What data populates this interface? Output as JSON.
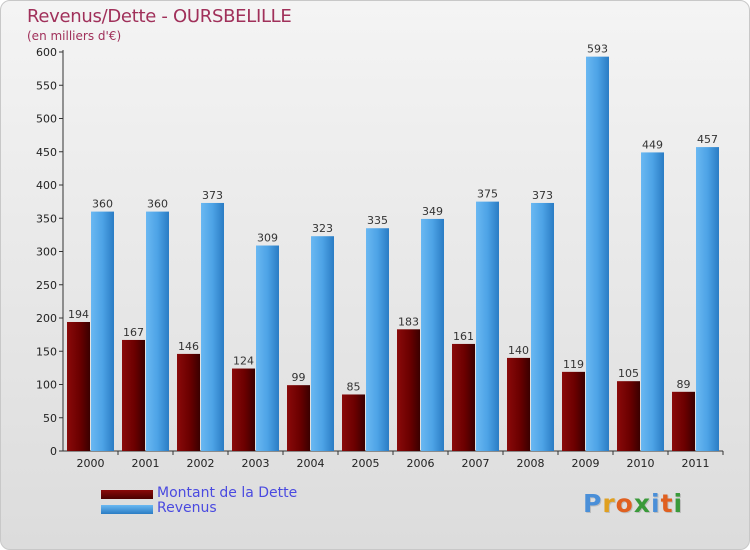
{
  "header": {
    "title": "Revenus/Dette - OURSBELILLE",
    "subtitle": "(en milliers d'€)"
  },
  "colors": {
    "dette": "#6b0000",
    "revenus": "#4da3e6",
    "title": "#a0305a",
    "legend_text": "#4a4ae0"
  },
  "legend": {
    "dette_label": "Montant de la Dette",
    "revenus_label": "Revenus"
  },
  "logo": {
    "letters": [
      "P",
      "r",
      "o",
      "x",
      "i",
      "t",
      "i"
    ],
    "colors": [
      "#4a8fd8",
      "#e0a020",
      "#e06020",
      "#3a9a3a",
      "#4a8fd8",
      "#e06020",
      "#3a9a3a"
    ]
  },
  "chart_data": {
    "type": "bar",
    "categories": [
      "2000",
      "2001",
      "2002",
      "2003",
      "2004",
      "2005",
      "2006",
      "2007",
      "2008",
      "2009",
      "2010",
      "2011"
    ],
    "series": [
      {
        "name": "Montant de la Dette",
        "values": [
          194,
          167,
          146,
          124,
          99,
          85,
          183,
          161,
          140,
          119,
          105,
          89
        ]
      },
      {
        "name": "Revenus",
        "values": [
          360,
          360,
          373,
          309,
          323,
          335,
          349,
          375,
          373,
          593,
          449,
          457
        ]
      }
    ],
    "ylim": [
      0,
      600
    ],
    "yticks": [
      0,
      50,
      100,
      150,
      200,
      250,
      300,
      350,
      400,
      450,
      500,
      550,
      600
    ],
    "grid": false,
    "legend_position": "bottom-left"
  }
}
